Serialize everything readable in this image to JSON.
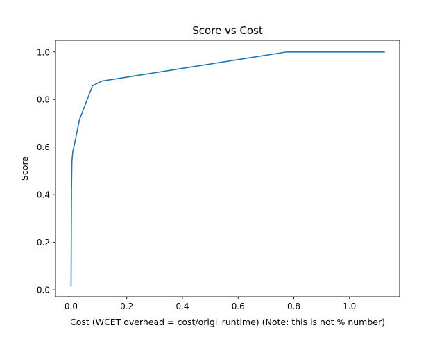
{
  "chart_data": {
    "type": "line",
    "title": "Score vs Cost",
    "xlabel": "Cost (WCET overhead = cost/origi_runtime) (Note: this is not % number)",
    "ylabel": "Score",
    "xlim": [
      -0.056,
      1.18
    ],
    "ylim": [
      -0.029,
      1.049
    ],
    "xticks": [
      0.0,
      0.2,
      0.4,
      0.6,
      0.8,
      1.0
    ],
    "xtick_labels": [
      "0.0",
      "0.2",
      "0.4",
      "0.6",
      "0.8",
      "1.0"
    ],
    "yticks": [
      0.0,
      0.2,
      0.4,
      0.6,
      0.8,
      1.0
    ],
    "ytick_labels": [
      "0.0",
      "0.2",
      "0.4",
      "0.6",
      "0.8",
      "1.0"
    ],
    "grid": false,
    "series": [
      {
        "color": "#1f77b4",
        "x": [
          0.0,
          0.0015,
          0.003,
          0.006,
          0.012,
          0.03,
          0.077,
          0.112,
          0.775,
          1.125
        ],
        "y": [
          0.02,
          0.42,
          0.54,
          0.58,
          0.61,
          0.715,
          0.858,
          0.878,
          1.0,
          1.0
        ]
      }
    ]
  }
}
